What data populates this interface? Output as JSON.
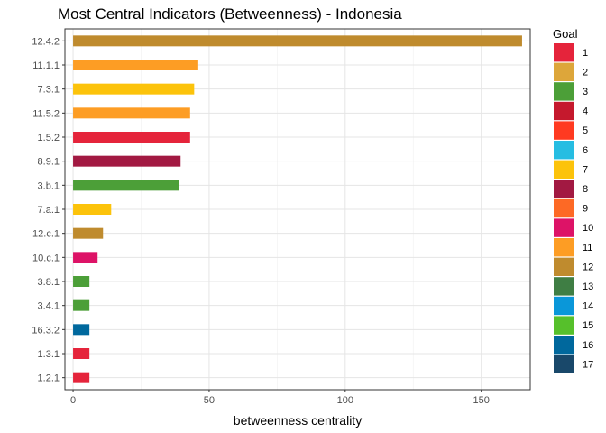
{
  "chart_data": {
    "type": "bar",
    "orientation": "horizontal",
    "title": "Most Central Indicators (Betweenness) - Indonesia",
    "xlabel": "betweenness centrality",
    "ylabel": "",
    "xlim": [
      -3,
      168
    ],
    "xticks": [
      0,
      50,
      100,
      150
    ],
    "grid": true,
    "legend_position": "right",
    "categories": [
      "12.4.2",
      "11.1.1",
      "7.3.1",
      "11.5.2",
      "1.5.2",
      "8.9.1",
      "3.b.1",
      "7.a.1",
      "12.c.1",
      "10.c.1",
      "3.8.1",
      "3.4.1",
      "16.3.2",
      "1.3.1",
      "1.2.1"
    ],
    "values": [
      165,
      46,
      44.5,
      43,
      43,
      39.5,
      39,
      14,
      11,
      9,
      6,
      6,
      6,
      6,
      6
    ],
    "goals": [
      "12",
      "11",
      "7",
      "11",
      "1",
      "8",
      "3",
      "7",
      "12",
      "10",
      "3",
      "3",
      "16",
      "1",
      "1"
    ],
    "legend": {
      "title": "Goal",
      "items": [
        {
          "label": "1",
          "color": "#E5243B"
        },
        {
          "label": "2",
          "color": "#DDA63A"
        },
        {
          "label": "3",
          "color": "#4C9F38"
        },
        {
          "label": "4",
          "color": "#C5192D"
        },
        {
          "label": "5",
          "color": "#FF3A21"
        },
        {
          "label": "6",
          "color": "#26BDE2"
        },
        {
          "label": "7",
          "color": "#FCC30B"
        },
        {
          "label": "8",
          "color": "#A21942"
        },
        {
          "label": "9",
          "color": "#FD6925"
        },
        {
          "label": "10",
          "color": "#DD1367"
        },
        {
          "label": "11",
          "color": "#FD9D24"
        },
        {
          "label": "12",
          "color": "#BF8B2E"
        },
        {
          "label": "13",
          "color": "#3F7E44"
        },
        {
          "label": "14",
          "color": "#0A97D9"
        },
        {
          "label": "15",
          "color": "#56C02B"
        },
        {
          "label": "16",
          "color": "#00689D"
        },
        {
          "label": "17",
          "color": "#19486A"
        }
      ]
    }
  }
}
